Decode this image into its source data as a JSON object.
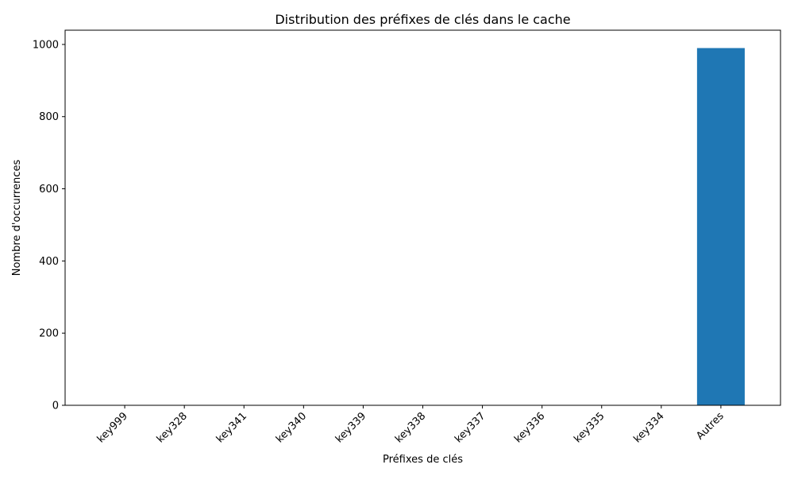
{
  "chart_data": {
    "type": "bar",
    "title": "Distribution des préfixes de clés dans le cache",
    "xlabel": "Préfixes de clés",
    "ylabel": "Nombre d'occurrences",
    "categories": [
      "key999",
      "key328",
      "key341",
      "key340",
      "key339",
      "key338",
      "key337",
      "key336",
      "key335",
      "key334",
      "Autres"
    ],
    "values": [
      1,
      1,
      1,
      1,
      1,
      1,
      1,
      1,
      1,
      1,
      990
    ],
    "ylim": [
      0,
      1039.5
    ],
    "yticks": [
      0,
      200,
      400,
      600,
      800,
      1000
    ],
    "bar_color": "#1f77b4",
    "grid": false,
    "legend": "none",
    "xtick_rotation": "45 degrees"
  }
}
